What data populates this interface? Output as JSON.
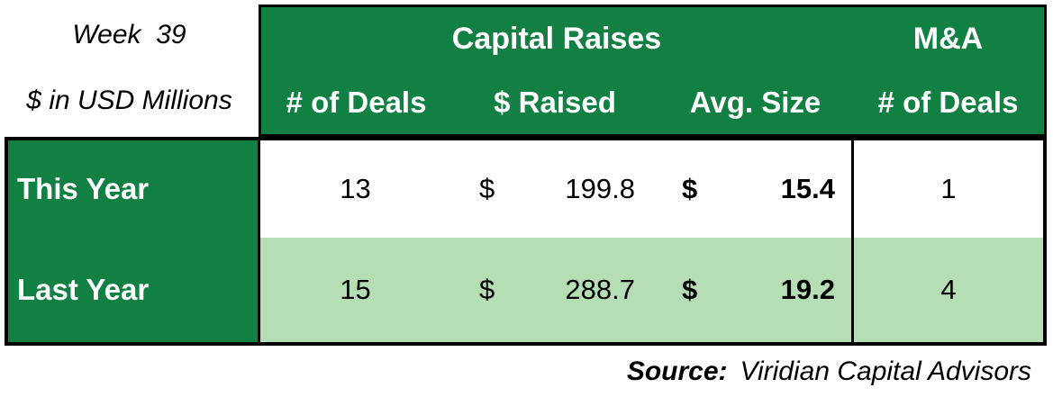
{
  "meta": {
    "week_label": "Week  39",
    "units_label": "$ in USD Millions"
  },
  "header": {
    "capital_raises_title": "Capital Raises",
    "ma_title": "M&A",
    "columns": [
      "# of Deals",
      "$ Raised",
      "Avg. Size",
      "# of Deals"
    ]
  },
  "rows": [
    {
      "label": "This Year",
      "deals": "13",
      "raised_currency": "$",
      "raised": "199.8",
      "avg_currency": "$",
      "avg_size": "15.4",
      "ma_deals": "1"
    },
    {
      "label": "Last Year",
      "deals": "15",
      "raised_currency": "$",
      "raised": "288.7",
      "avg_currency": "$",
      "avg_size": "19.2",
      "ma_deals": "4"
    }
  ],
  "source": {
    "prefix": "Source:",
    "text": "Viridian Capital Advisors"
  },
  "colors": {
    "dark_green": "#128042",
    "light_green": "#B5DEB5",
    "border": "#000000",
    "header_text": "#FFFFFF"
  },
  "chart_data": {
    "type": "table",
    "title": "Week 39 — Capital Raises and M&A ($ in USD Millions)",
    "column_groups": [
      "Capital Raises",
      "Capital Raises",
      "Capital Raises",
      "M&A"
    ],
    "columns": [
      "# of Deals",
      "$ Raised",
      "Avg. Size",
      "# of Deals"
    ],
    "row_labels": [
      "This Year",
      "Last Year"
    ],
    "values": [
      [
        13,
        199.8,
        15.4,
        1
      ],
      [
        15,
        288.7,
        19.2,
        4
      ]
    ],
    "source": "Viridian Capital Advisors"
  }
}
